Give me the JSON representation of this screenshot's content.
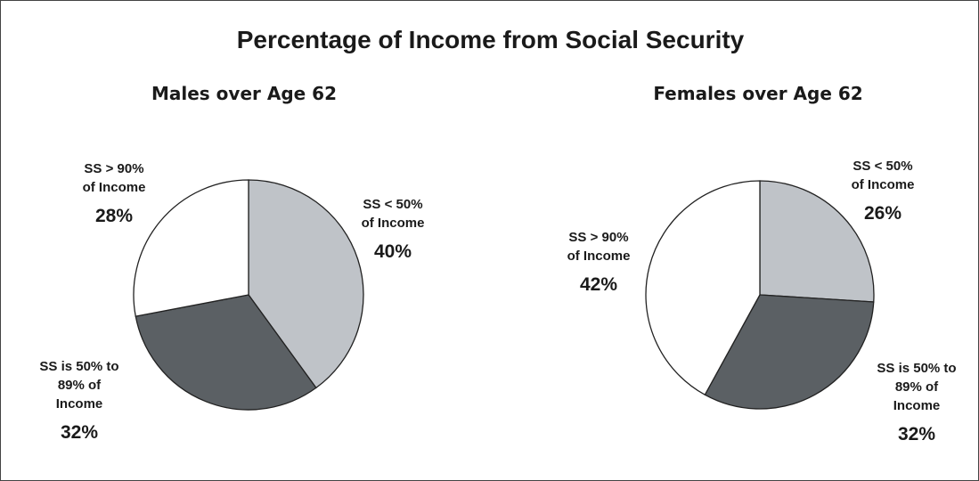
{
  "title": "Percentage of Income from Social Security",
  "colors": {
    "light": "#bfc3c8",
    "dark": "#5b6064",
    "white": "#ffffff",
    "stroke": "#222222"
  },
  "chart_data": [
    {
      "type": "pie",
      "title": "Males over Age 62",
      "slices": [
        {
          "label_lines": [
            "SS < 50%",
            "of Income"
          ],
          "value": 40,
          "pct_label": "40%",
          "color": "#bfc3c8"
        },
        {
          "label_lines": [
            "SS is 50% to",
            "89% of",
            "Income"
          ],
          "value": 32,
          "pct_label": "32%",
          "color": "#5b6064"
        },
        {
          "label_lines": [
            "SS > 90%",
            "of Income"
          ],
          "value": 28,
          "pct_label": "28%",
          "color": "#ffffff"
        }
      ]
    },
    {
      "type": "pie",
      "title": "Females over Age 62",
      "slices": [
        {
          "label_lines": [
            "SS < 50%",
            "of Income"
          ],
          "value": 26,
          "pct_label": "26%",
          "color": "#bfc3c8"
        },
        {
          "label_lines": [
            "SS is 50% to",
            "89% of",
            "Income"
          ],
          "value": 32,
          "pct_label": "32%",
          "color": "#5b6064"
        },
        {
          "label_lines": [
            "SS > 90%",
            "of Income"
          ],
          "value": 42,
          "pct_label": "42%",
          "color": "#ffffff"
        }
      ]
    }
  ]
}
